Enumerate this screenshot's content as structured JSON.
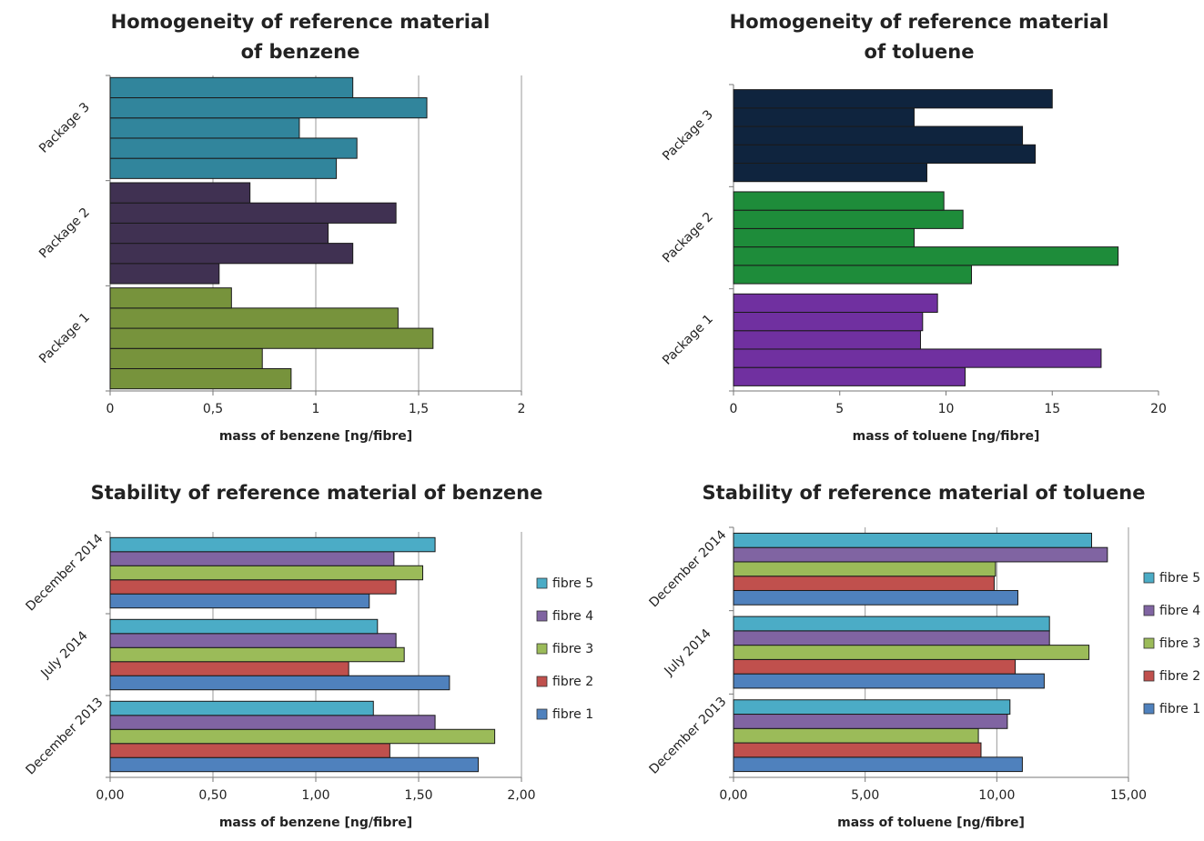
{
  "chart_data": [
    {
      "type": "bar",
      "orientation": "horizontal",
      "title": [
        "Homogeneity of reference material",
        "of benzene"
      ],
      "x_label": "mass of benzene [ng/fibre]",
      "categories": [
        "Package 1",
        "Package 2",
        "Package 3"
      ],
      "colors": [
        "#77933c",
        "#403152",
        "#31859c"
      ],
      "values": [
        [
          0.88,
          0.74,
          1.57,
          1.4,
          0.59
        ],
        [
          0.53,
          1.18,
          1.06,
          1.39,
          0.68
        ],
        [
          1.1,
          1.2,
          0.92,
          1.54,
          1.18
        ]
      ],
      "xlim": [
        0,
        2
      ],
      "xticks": [
        0,
        {
          "value": 0.5,
          "label": "0,5"
        },
        1,
        {
          "value": 1.5,
          "label": "1,5"
        },
        2
      ],
      "grid": true
    },
    {
      "type": "bar",
      "orientation": "horizontal",
      "title": [
        "Homogeneity of reference material",
        "of toluene"
      ],
      "x_label": "mass of toluene [ng/fibre]",
      "categories": [
        "Package 1",
        "Package 2",
        "Package 3"
      ],
      "colors": [
        "#7030a0",
        "#1e8c3a",
        "#0f243e"
      ],
      "values": [
        [
          10.9,
          17.3,
          8.8,
          8.9,
          9.6
        ],
        [
          11.2,
          18.1,
          8.5,
          10.8,
          9.9
        ],
        [
          9.1,
          14.2,
          13.6,
          8.5,
          15.0
        ]
      ],
      "xlim": [
        0,
        20
      ],
      "xticks": [
        0,
        5,
        10,
        15,
        20
      ],
      "grid": false
    },
    {
      "type": "bar",
      "orientation": "horizontal",
      "title": [
        "Stability of reference material of benzene"
      ],
      "x_label": "mass of benzene [ng/fibre]",
      "categories": [
        "December 2013",
        "July 2014",
        "December 2014"
      ],
      "series": [
        {
          "name": "fibre 1",
          "color": "#4f81bd",
          "values": [
            1.79,
            1.65,
            1.26
          ]
        },
        {
          "name": "fibre 2",
          "color": "#c0504d",
          "values": [
            1.36,
            1.16,
            1.39
          ]
        },
        {
          "name": "fibre 3",
          "color": "#9bbb59",
          "values": [
            1.87,
            1.43,
            1.52
          ]
        },
        {
          "name": "fibre 4",
          "color": "#8064a2",
          "values": [
            1.58,
            1.39,
            1.38
          ]
        },
        {
          "name": "fibre 5",
          "color": "#4bacc6",
          "values": [
            1.28,
            1.3,
            1.58
          ]
        }
      ],
      "xlim": [
        0,
        2
      ],
      "xticks": [
        {
          "value": 0,
          "label": "0,00"
        },
        {
          "value": 0.5,
          "label": "0,50"
        },
        {
          "value": 1,
          "label": "1,00"
        },
        {
          "value": 1.5,
          "label": "1,50"
        },
        {
          "value": 2,
          "label": "2,00"
        }
      ],
      "grid": true,
      "legend": "right"
    },
    {
      "type": "bar",
      "orientation": "horizontal",
      "title": [
        "Stability of reference material of toluene"
      ],
      "x_label": "mass of toluene [ng/fibre]",
      "categories": [
        "December 2013",
        "July 2014",
        "December 2014"
      ],
      "series": [
        {
          "name": "fibre 1",
          "color": "#4f81bd",
          "values": [
            10.97,
            11.8,
            10.8
          ]
        },
        {
          "name": "fibre 2",
          "color": "#c0504d",
          "values": [
            9.4,
            10.7,
            9.9
          ]
        },
        {
          "name": "fibre 3",
          "color": "#9bbb59",
          "values": [
            9.3,
            13.5,
            9.95
          ]
        },
        {
          "name": "fibre 4",
          "color": "#8064a2",
          "values": [
            10.4,
            12.0,
            14.2
          ]
        },
        {
          "name": "fibre 5",
          "color": "#4bacc6",
          "values": [
            10.5,
            12.0,
            13.6
          ]
        }
      ],
      "xlim": [
        0,
        15
      ],
      "xticks": [
        {
          "value": 0,
          "label": "0,00"
        },
        {
          "value": 5,
          "label": "5,00"
        },
        {
          "value": 10,
          "label": "10,00"
        },
        {
          "value": 15,
          "label": "15,00"
        }
      ],
      "grid": true,
      "legend": "right"
    }
  ]
}
